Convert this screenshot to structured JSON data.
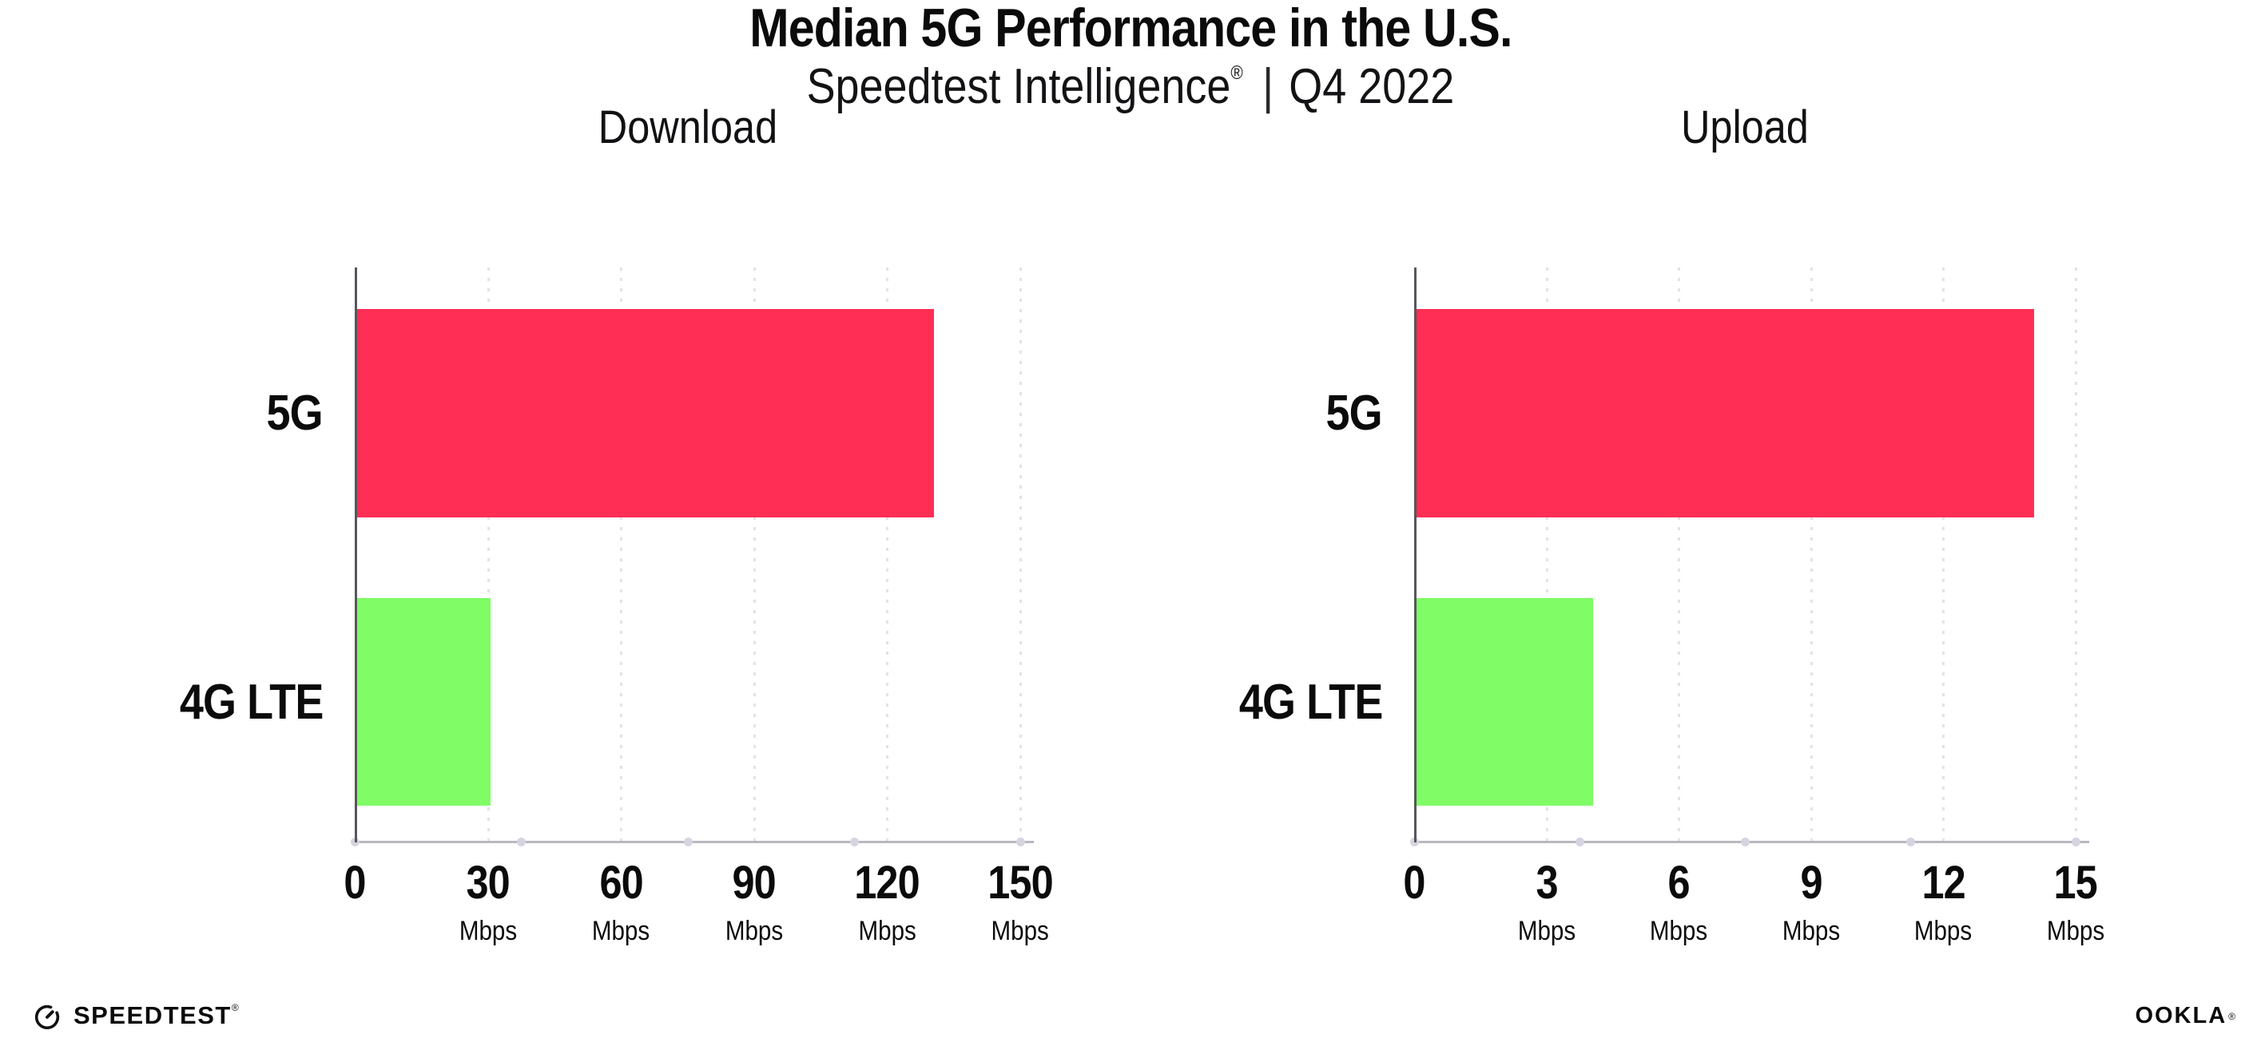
{
  "header": {
    "title": "Median 5G Performance in the U.S.",
    "subtitle": {
      "brand": "Speedtest Intelligence",
      "registered_mark": "®",
      "divider": "|",
      "period": "Q4 2022"
    }
  },
  "colors": {
    "bar_5g": "#ff2e55",
    "bar_4g_lte": "#7ffc66",
    "gridline": "#e2e2ec",
    "x_axis_line": "#b8b8bf",
    "y_axis_line": "#56565c",
    "axis_dot": "#d5d5e1",
    "text": "#0b0b0c"
  },
  "chart_data": [
    {
      "type": "bar",
      "orientation": "horizontal",
      "title": "Download",
      "unit": "Mbps",
      "categories": [
        "5G",
        "4G LTE"
      ],
      "values": [
        130,
        30
      ],
      "bar_colors": [
        "#ff2e55",
        "#7ffc66"
      ],
      "xlim": [
        0,
        150
      ],
      "xticks": [
        0,
        30,
        60,
        90,
        120,
        150
      ],
      "grid": true,
      "legend": "none"
    },
    {
      "type": "bar",
      "orientation": "horizontal",
      "title": "Upload",
      "unit": "Mbps",
      "categories": [
        "5G",
        "4G LTE"
      ],
      "values": [
        14,
        4
      ],
      "bar_colors": [
        "#ff2e55",
        "#7ffc66"
      ],
      "xlim": [
        0,
        15
      ],
      "xticks": [
        0,
        3,
        6,
        9,
        12,
        15
      ],
      "grid": true,
      "legend": "none"
    }
  ],
  "footer": {
    "speedtest": {
      "label": "SPEEDTEST",
      "mark": "®"
    },
    "ookla": {
      "label": "OOKLA",
      "mark": "®"
    }
  }
}
